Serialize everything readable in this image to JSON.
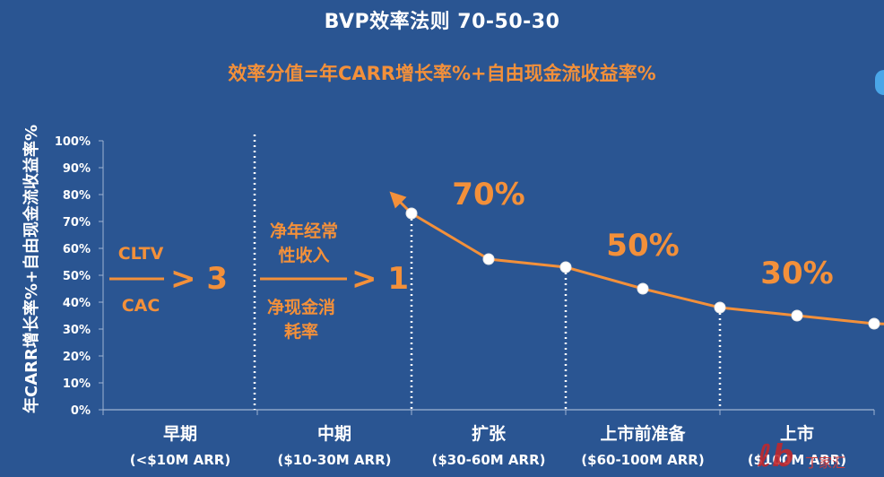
{
  "title": "BVP效率法则 70-50-30",
  "subtitle": "效率分值=年CARR增长率%+自由现金流收益率%",
  "chart_data": {
    "type": "line",
    "ylabel": "年CARR增长率%+自由现金流收益率%",
    "ylim": [
      0,
      100
    ],
    "yticks": [
      0,
      10,
      20,
      30,
      40,
      50,
      60,
      70,
      80,
      90,
      100
    ],
    "ytick_suffix": "%",
    "grid": false,
    "stages": [
      {
        "name": "早期",
        "arr": "(<$10M ARR)"
      },
      {
        "name": "中期",
        "arr": "($10-30M ARR)"
      },
      {
        "name": "扩张",
        "arr": "($30-60M ARR)"
      },
      {
        "name": "上市前准备",
        "arr": "($60-100M ARR)"
      },
      {
        "name": "上市",
        "arr": "($100M ARR)"
      }
    ],
    "series": [
      {
        "values": [
          73,
          56,
          53,
          45,
          38,
          35,
          32
        ]
      }
    ],
    "point_stage_positions": [
      2.0,
      2.5,
      3.0,
      3.5,
      4.0,
      4.5,
      5.0
    ],
    "annotations": {
      "early": {
        "top": "CLTV",
        "bottom": "CAC",
        "comparison": "> 3"
      },
      "mid": {
        "top": "净年经常性收入",
        "bottom": "净现金消耗率",
        "comparison": "> 1"
      },
      "stage_targets": [
        "70%",
        "50%",
        "30%"
      ]
    },
    "colors": {
      "background": "#2a5592",
      "accent": "#f3903a",
      "text": "#ffffff"
    }
  },
  "watermark": "丁家汇"
}
